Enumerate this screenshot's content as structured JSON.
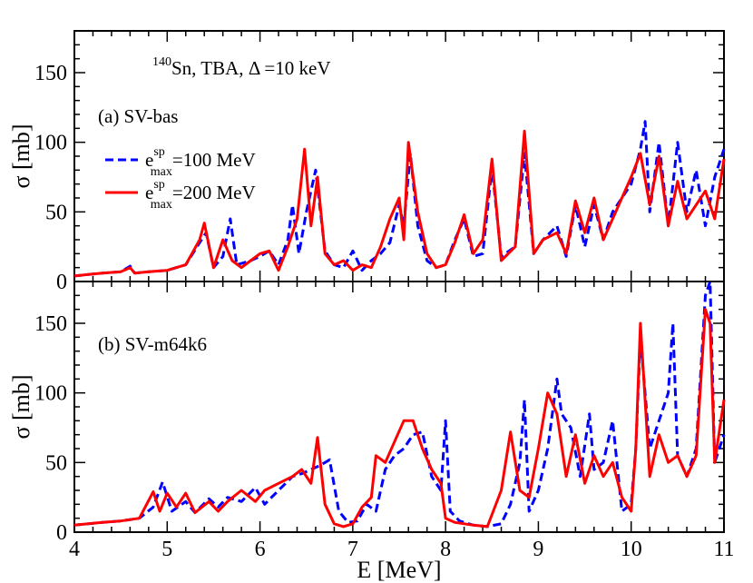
{
  "chart_data": [
    {
      "type": "line",
      "panel_label": "(a)  SV-bas",
      "title": "140Sn, TBA, Δ=10 keV",
      "title_parts": {
        "nuclide_mass": "140",
        "nuclide_rest": "Sn,  TBA,  ",
        "delta": "Δ",
        "delta_rest": " =10 keV"
      },
      "ylabel": "σ [mb]",
      "xlim": [
        4,
        11
      ],
      "ylim": [
        0,
        180
      ],
      "yticks": [
        0,
        50,
        100,
        150
      ],
      "legend_position": "upper-left",
      "series": [
        {
          "name": "e^sp_max=100 MeV",
          "legend": {
            "base": "e",
            "sup": "sp",
            "sub": "max",
            "rest": "=100 MeV"
          },
          "color": "#0000ff",
          "style": "dashed",
          "x": [
            4.0,
            4.15,
            4.3,
            4.5,
            4.6,
            4.65,
            4.8,
            5.0,
            5.2,
            5.35,
            5.42,
            5.5,
            5.6,
            5.68,
            5.75,
            5.9,
            6.0,
            6.1,
            6.2,
            6.3,
            6.35,
            6.42,
            6.5,
            6.6,
            6.7,
            6.8,
            6.9,
            7.0,
            7.1,
            7.2,
            7.3,
            7.4,
            7.5,
            7.55,
            7.62,
            7.7,
            7.8,
            7.9,
            8.0,
            8.1,
            8.2,
            8.3,
            8.4,
            8.5,
            8.6,
            8.75,
            8.85,
            8.95,
            9.05,
            9.2,
            9.3,
            9.4,
            9.5,
            9.6,
            9.7,
            9.8,
            9.9,
            10.0,
            10.1,
            10.15,
            10.2,
            10.3,
            10.4,
            10.5,
            10.6,
            10.7,
            10.8,
            10.9,
            11.0
          ],
          "y": [
            4,
            5,
            6,
            7,
            11,
            6,
            7,
            8,
            12,
            28,
            35,
            10,
            18,
            45,
            12,
            15,
            18,
            22,
            12,
            30,
            55,
            20,
            50,
            80,
            22,
            12,
            10,
            22,
            8,
            15,
            20,
            28,
            55,
            40,
            92,
            40,
            15,
            10,
            12,
            30,
            45,
            18,
            20,
            82,
            18,
            25,
            92,
            20,
            30,
            40,
            18,
            55,
            25,
            55,
            30,
            50,
            60,
            70,
            95,
            115,
            50,
            100,
            40,
            100,
            50,
            80,
            40,
            75,
            95
          ]
        },
        {
          "name": "e^sp_max=200 MeV",
          "legend": {
            "base": "e",
            "sup": "sp",
            "sub": "max",
            "rest": "=200 MeV"
          },
          "color": "#ff0000",
          "style": "solid",
          "x": [
            4.0,
            4.15,
            4.3,
            4.5,
            4.6,
            4.65,
            4.8,
            5.0,
            5.2,
            5.35,
            5.4,
            5.5,
            5.6,
            5.7,
            5.8,
            5.9,
            6.0,
            6.1,
            6.2,
            6.3,
            6.4,
            6.48,
            6.55,
            6.62,
            6.7,
            6.8,
            6.9,
            7.0,
            7.1,
            7.2,
            7.3,
            7.4,
            7.5,
            7.55,
            7.6,
            7.7,
            7.8,
            7.9,
            8.0,
            8.1,
            8.2,
            8.3,
            8.4,
            8.5,
            8.6,
            8.75,
            8.85,
            8.95,
            9.05,
            9.2,
            9.3,
            9.4,
            9.5,
            9.6,
            9.7,
            9.8,
            9.9,
            10.0,
            10.1,
            10.2,
            10.3,
            10.4,
            10.5,
            10.6,
            10.7,
            10.8,
            10.9,
            11.0
          ],
          "y": [
            4,
            5,
            6,
            7,
            10,
            6,
            7,
            8,
            12,
            30,
            42,
            10,
            30,
            15,
            10,
            15,
            20,
            22,
            8,
            25,
            45,
            95,
            40,
            75,
            20,
            12,
            15,
            8,
            12,
            10,
            25,
            45,
            60,
            30,
            100,
            50,
            20,
            10,
            12,
            28,
            48,
            20,
            30,
            88,
            15,
            25,
            108,
            20,
            30,
            35,
            20,
            58,
            35,
            60,
            30,
            45,
            60,
            75,
            92,
            55,
            90,
            40,
            72,
            45,
            55,
            65,
            45,
            88
          ]
        }
      ]
    },
    {
      "type": "line",
      "panel_label": "(b)  SV-m64k6",
      "xlabel": "E [MeV]",
      "ylabel": "σ [mb]",
      "xlim": [
        4,
        11
      ],
      "ylim": [
        0,
        180
      ],
      "xticks": [
        4,
        5,
        6,
        7,
        8,
        9,
        10,
        11
      ],
      "yticks": [
        0,
        50,
        100,
        150
      ],
      "series": [
        {
          "name": "e^sp_max=100 MeV",
          "color": "#0000ff",
          "style": "dashed",
          "x": [
            4.0,
            4.3,
            4.5,
            4.7,
            4.85,
            4.95,
            5.05,
            5.2,
            5.3,
            5.45,
            5.55,
            5.65,
            5.8,
            5.95,
            6.05,
            6.2,
            6.35,
            6.45,
            6.55,
            6.65,
            6.75,
            6.85,
            6.95,
            7.05,
            7.15,
            7.25,
            7.35,
            7.45,
            7.55,
            7.65,
            7.75,
            7.85,
            7.95,
            8.0,
            8.05,
            8.15,
            8.3,
            8.45,
            8.6,
            8.7,
            8.8,
            8.85,
            8.9,
            9.0,
            9.1,
            9.2,
            9.25,
            9.35,
            9.45,
            9.55,
            9.6,
            9.7,
            9.8,
            9.9,
            10.0,
            10.05,
            10.1,
            10.2,
            10.3,
            10.4,
            10.45,
            10.5,
            10.6,
            10.7,
            10.8,
            10.85,
            10.9,
            11.0
          ],
          "y": [
            5,
            7,
            8,
            10,
            18,
            36,
            15,
            22,
            14,
            24,
            18,
            25,
            22,
            32,
            20,
            30,
            40,
            42,
            45,
            48,
            52,
            15,
            7,
            8,
            20,
            15,
            45,
            55,
            60,
            70,
            72,
            40,
            30,
            80,
            15,
            8,
            5,
            4,
            6,
            20,
            50,
            95,
            15,
            30,
            60,
            110,
            85,
            75,
            40,
            85,
            45,
            50,
            80,
            15,
            20,
            60,
            140,
            60,
            80,
            100,
            150,
            55,
            40,
            60,
            170,
            180,
            50,
            70
          ]
        },
        {
          "name": "e^sp_max=200 MeV",
          "color": "#ff0000",
          "style": "solid",
          "x": [
            4.0,
            4.3,
            4.5,
            4.7,
            4.85,
            4.92,
            5.0,
            5.1,
            5.2,
            5.3,
            5.45,
            5.55,
            5.65,
            5.8,
            5.95,
            6.05,
            6.2,
            6.35,
            6.45,
            6.55,
            6.62,
            6.7,
            6.8,
            6.9,
            7.0,
            7.1,
            7.2,
            7.25,
            7.35,
            7.45,
            7.55,
            7.65,
            7.75,
            7.85,
            7.95,
            8.0,
            8.1,
            8.3,
            8.45,
            8.6,
            8.7,
            8.8,
            8.9,
            9.0,
            9.1,
            9.2,
            9.3,
            9.4,
            9.5,
            9.6,
            9.7,
            9.8,
            9.9,
            10.0,
            10.05,
            10.1,
            10.2,
            10.3,
            10.4,
            10.5,
            10.6,
            10.7,
            10.8,
            10.85,
            10.9,
            11.0
          ],
          "y": [
            5,
            7,
            8,
            10,
            29,
            15,
            28,
            18,
            28,
            14,
            22,
            15,
            22,
            30,
            22,
            30,
            35,
            40,
            45,
            35,
            68,
            20,
            6,
            4,
            6,
            18,
            25,
            55,
            50,
            65,
            80,
            80,
            60,
            45,
            35,
            10,
            7,
            5,
            4,
            30,
            72,
            30,
            25,
            60,
            100,
            85,
            40,
            70,
            35,
            55,
            40,
            50,
            25,
            15,
            60,
            150,
            40,
            70,
            50,
            55,
            40,
            55,
            160,
            150,
            50,
            95
          ]
        }
      ]
    }
  ]
}
